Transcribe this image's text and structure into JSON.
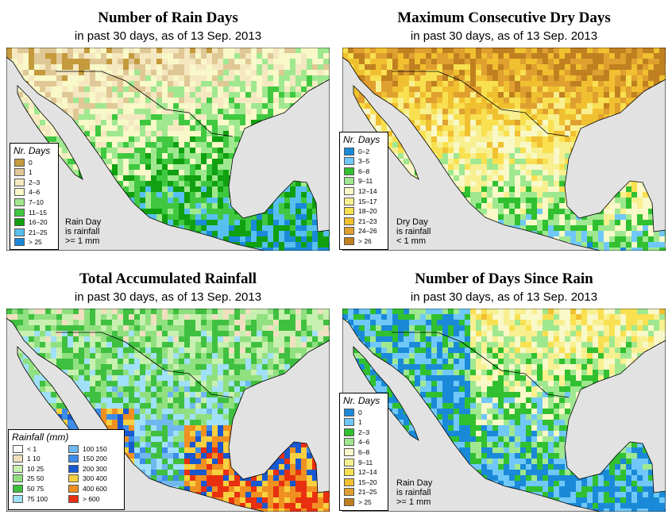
{
  "panels": [
    {
      "title": "Number of Rain Days",
      "subtitle": "in past 30 days, as of  13 Sep. 2013",
      "legend_title": "Nr. Days",
      "legend": [
        {
          "label": "0",
          "color": "#c49a3c"
        },
        {
          "label": "1",
          "color": "#e0c896"
        },
        {
          "label": "2–3",
          "color": "#f5e8c0"
        },
        {
          "label": "4–6",
          "color": "#f8f8c8"
        },
        {
          "label": "7–10",
          "color": "#a0e890"
        },
        {
          "label": "11–15",
          "color": "#40c840"
        },
        {
          "label": "16–20",
          "color": "#10a010"
        },
        {
          "label": "21–25",
          "color": "#58c0f0"
        },
        {
          "label": "> 25",
          "color": "#1a8ad8"
        }
      ],
      "note": [
        "Rain Day",
        "is rainfall",
        ">= 1 mm"
      ]
    },
    {
      "title": "Maximum Consecutive Dry Days",
      "subtitle": "in past 30 days, as of  13 Sep. 2013",
      "legend_title": "Nr. Days",
      "legend": [
        {
          "label": "0–2",
          "color": "#1a8ad8"
        },
        {
          "label": "3–5",
          "color": "#70c8f8"
        },
        {
          "label": "6–8",
          "color": "#30c030"
        },
        {
          "label": "9–11",
          "color": "#a0e890"
        },
        {
          "label": "12–14",
          "color": "#f8f8c8"
        },
        {
          "label": "15–17",
          "color": "#f8f090"
        },
        {
          "label": "18–20",
          "color": "#f8e050"
        },
        {
          "label": "21–23",
          "color": "#f0c030"
        },
        {
          "label": "24–26",
          "color": "#e0a030"
        },
        {
          "label": "> 26",
          "color": "#c08020"
        }
      ],
      "note": [
        "Dry Day",
        "is rainfall",
        "< 1 mm"
      ]
    },
    {
      "title": "Total Accumulated Rainfall",
      "subtitle": "in past 30 days, as of  13 Sep. 2013",
      "legend_title": "Rainfall (mm)",
      "legend": [
        {
          "label": "< 1",
          "color": "#ffffff"
        },
        {
          "label": "1    10",
          "color": "#f0e0c0"
        },
        {
          "label": "10    25",
          "color": "#c8f0b0"
        },
        {
          "label": "25    50",
          "color": "#90e080"
        },
        {
          "label": "50    75",
          "color": "#40c040"
        },
        {
          "label": "75  100",
          "color": "#a0e0f8"
        },
        {
          "label": "100  150",
          "color": "#70b8f0"
        },
        {
          "label": "150  200",
          "color": "#3c8ce8"
        },
        {
          "label": "200  300",
          "color": "#1858d0"
        },
        {
          "label": "300  400",
          "color": "#f8d040"
        },
        {
          "label": "400  600",
          "color": "#f09020"
        },
        {
          "label": "> 600",
          "color": "#e83010"
        }
      ],
      "note": []
    },
    {
      "title": "Number of Days Since Rain",
      "subtitle": "in past 30 days, as of  13 Sep. 2013",
      "legend_title": "Nr. Days",
      "legend": [
        {
          "label": "0",
          "color": "#1a8ad8"
        },
        {
          "label": "1",
          "color": "#70c8f8"
        },
        {
          "label": "2–3",
          "color": "#30c030"
        },
        {
          "label": "4–6",
          "color": "#a0e890"
        },
        {
          "label": "6–8",
          "color": "#f8f8c8"
        },
        {
          "label": "9–11",
          "color": "#f8f090"
        },
        {
          "label": "12–14",
          "color": "#f8e050"
        },
        {
          "label": "15–20",
          "color": "#f0c030"
        },
        {
          "label": "21–25",
          "color": "#e0a030"
        },
        {
          "label": "> 25",
          "color": "#c08020"
        }
      ],
      "note": [
        "Rain Day",
        "is rainfall",
        ">= 1 mm"
      ]
    }
  ]
}
